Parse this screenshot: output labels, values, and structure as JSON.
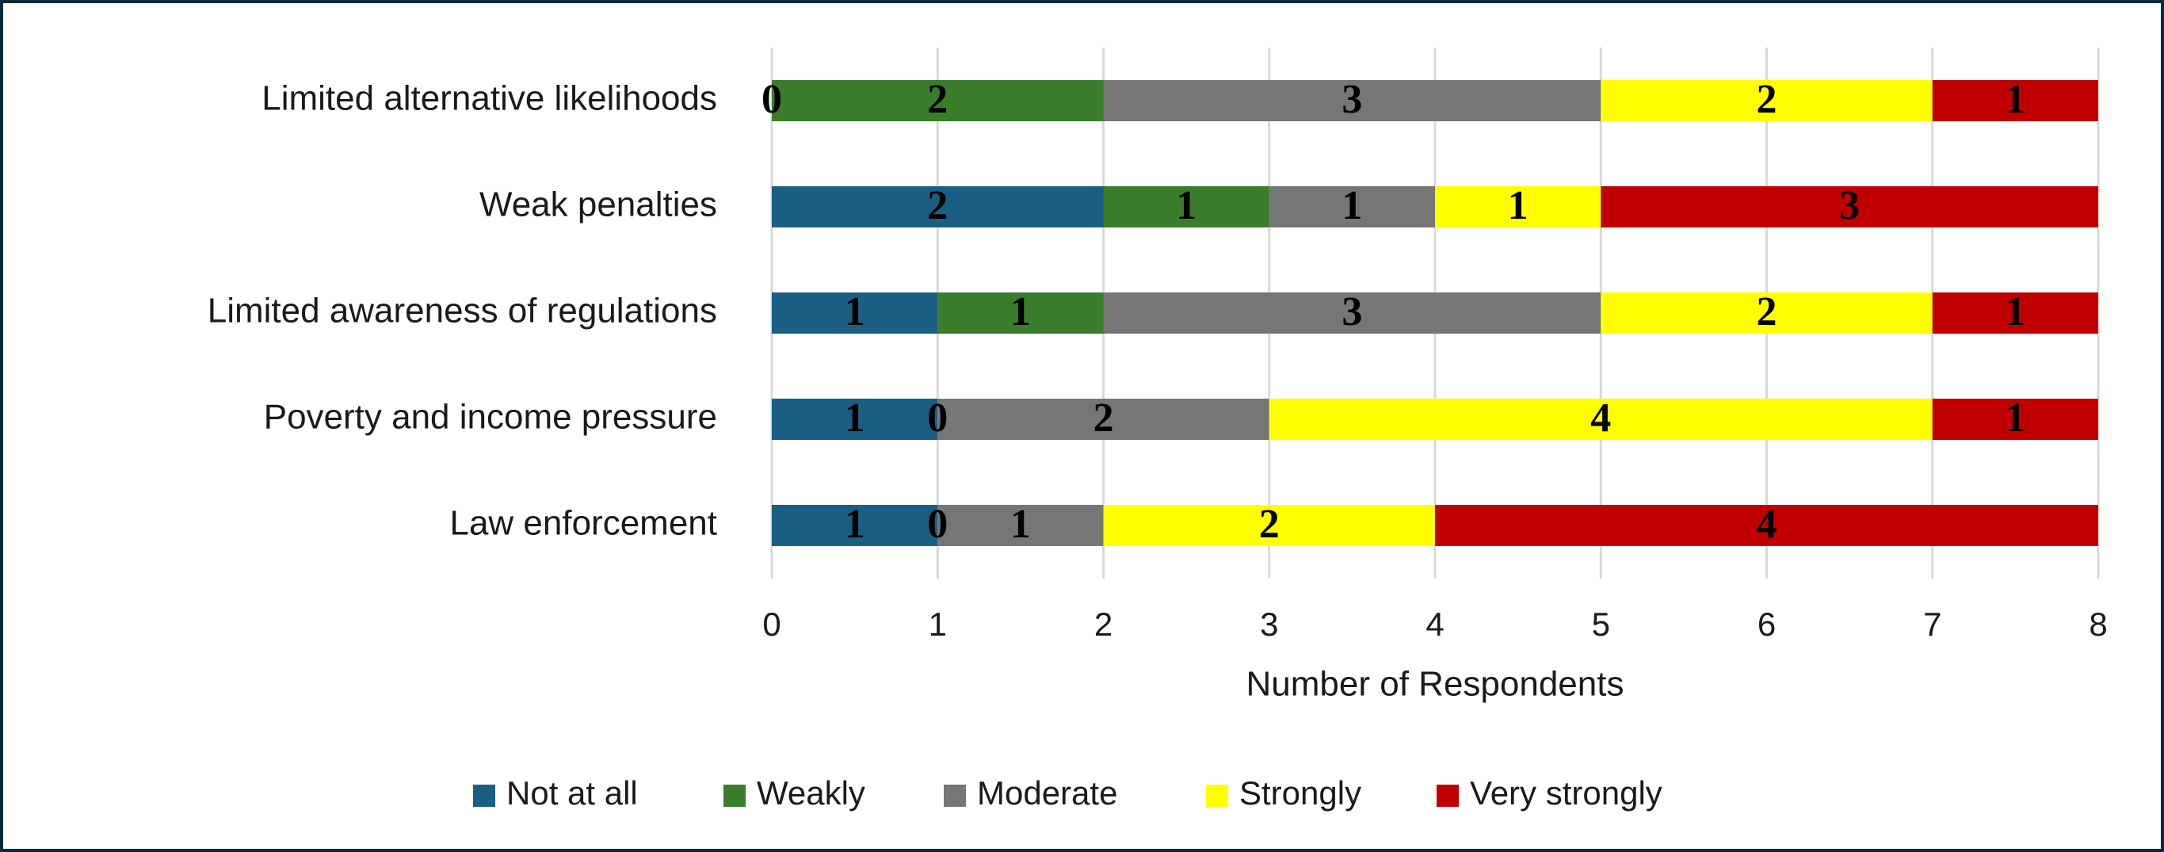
{
  "chart_data": {
    "type": "stacked_barh",
    "categories": [
      "Limited alternative likelihoods",
      "Weak penalties",
      "Limited awareness of regulations",
      "Poverty and income pressure",
      "Law enforcement"
    ],
    "series": [
      {
        "name": "Not at all",
        "color": "#1b5e83",
        "values": [
          0,
          2,
          1,
          1,
          1
        ]
      },
      {
        "name": "Weakly",
        "color": "#3a7d2a",
        "values": [
          2,
          1,
          1,
          0,
          0
        ]
      },
      {
        "name": "Moderate",
        "color": "#767676",
        "values": [
          3,
          1,
          3,
          2,
          1
        ]
      },
      {
        "name": "Strongly",
        "color": "#ffff00",
        "values": [
          2,
          1,
          2,
          4,
          2
        ]
      },
      {
        "name": "Very strongly",
        "color": "#c00000",
        "values": [
          1,
          3,
          1,
          1,
          4
        ]
      }
    ],
    "xlabel": "Number of Respondents",
    "xlim": [
      0,
      8
    ],
    "xticks": [
      0,
      1,
      2,
      3,
      4,
      5,
      6,
      7,
      8
    ],
    "grid": true,
    "legend": "bottom"
  }
}
